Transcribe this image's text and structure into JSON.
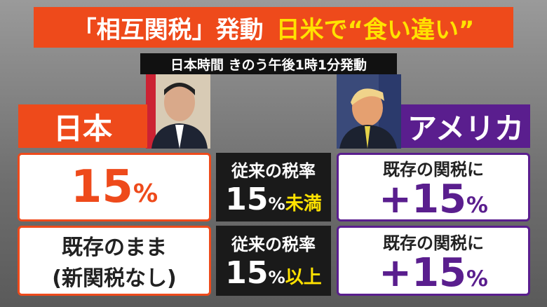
{
  "header": {
    "title_part1": "「相互関税」発動",
    "title_part2": "日米で“食い違い”",
    "subtitle": "日本時間 きのう午後1時1分発動"
  },
  "left": {
    "label": "日本",
    "row1": {
      "number": "15",
      "unit": "%"
    },
    "row2": {
      "line1": "既存のまま",
      "line2": "(新関税なし)"
    }
  },
  "middle": {
    "row1": {
      "line1": "従来の税率",
      "number": "15",
      "unit": "%",
      "suffix": "未満"
    },
    "row2": {
      "line1": "従来の税率",
      "number": "15",
      "unit": "%",
      "suffix": "以上"
    }
  },
  "right": {
    "label": "アメリカ",
    "row1": {
      "line1": "既存の関税に",
      "number": "+15",
      "unit": "%"
    },
    "row2": {
      "line1": "既存の関税に",
      "number": "+15",
      "unit": "%"
    }
  }
}
